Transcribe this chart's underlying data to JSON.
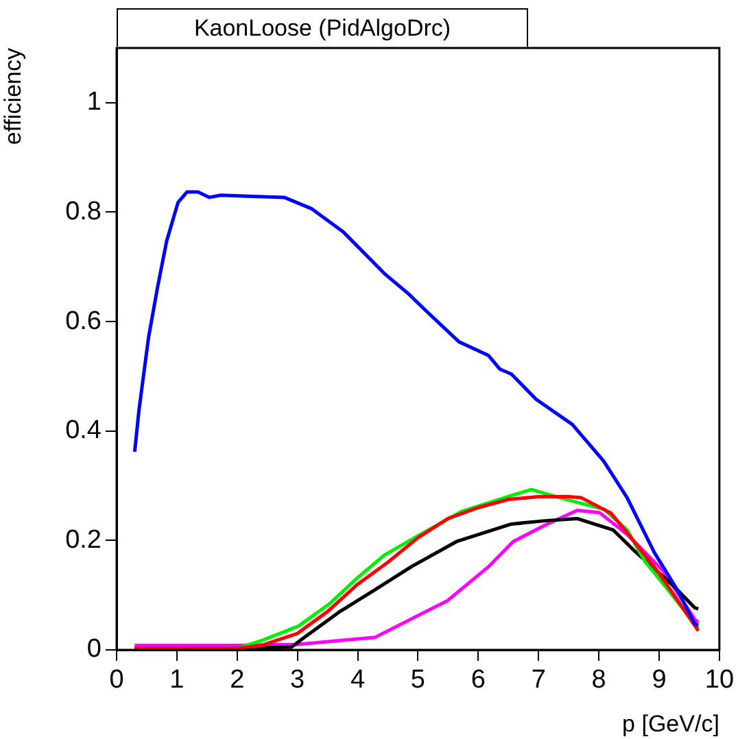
{
  "chart_data": {
    "type": "line",
    "title": "KaonLoose (PidAlgoDrc)",
    "xlabel": "p [GeV/c]",
    "ylabel": "efficiency",
    "xlim": [
      0,
      10
    ],
    "ylim": [
      0,
      1.1
    ],
    "xticks": [
      0,
      1,
      2,
      3,
      4,
      5,
      6,
      7,
      8,
      9,
      10
    ],
    "yticks": [
      0,
      0.2,
      0.4,
      0.6,
      0.8,
      1
    ],
    "grid": false,
    "legend": false,
    "marker": "none",
    "line_style": "solid",
    "series": [
      {
        "color": "#0000ff",
        "x": [
          0.3,
          0.37,
          0.53,
          0.68,
          0.83,
          1.02,
          1.17,
          1.35,
          1.54,
          1.73,
          2.18,
          2.78,
          3.24,
          3.76,
          4.44,
          4.85,
          5.12,
          5.68,
          6.17,
          6.36,
          6.55,
          6.96,
          7.56,
          8.08,
          8.47,
          8.92,
          9.3,
          9.59,
          9.65
        ],
        "values": [
          0.362,
          0.437,
          0.571,
          0.663,
          0.747,
          0.818,
          0.837,
          0.837,
          0.827,
          0.831,
          0.829,
          0.827,
          0.806,
          0.764,
          0.688,
          0.65,
          0.621,
          0.563,
          0.538,
          0.513,
          0.504,
          0.458,
          0.412,
          0.345,
          0.278,
          0.178,
          0.11,
          0.048,
          0.045
        ]
      },
      {
        "color": "#ff0000",
        "x": [
          0.3,
          1,
          2,
          2.4,
          3,
          3.5,
          4,
          4.5,
          5,
          5.5,
          6,
          6.5,
          7,
          7.5,
          7.71,
          8.2,
          8.5,
          9,
          9.65
        ],
        "values": [
          0.003,
          0.003,
          0.003,
          0.008,
          0.03,
          0.07,
          0.12,
          0.16,
          0.205,
          0.24,
          0.26,
          0.275,
          0.28,
          0.28,
          0.278,
          0.25,
          0.21,
          0.14,
          0.035
        ]
      },
      {
        "color": "#00ee00",
        "x": [
          0.3,
          1,
          2,
          2.41,
          3.01,
          3.54,
          3.99,
          4.44,
          5.04,
          5.72,
          6.55,
          6.88,
          7.49,
          8.09,
          8.47,
          8.77,
          9.14,
          9.59,
          9.65
        ],
        "values": [
          0.003,
          0.003,
          0.003,
          0.017,
          0.043,
          0.085,
          0.131,
          0.173,
          0.211,
          0.253,
          0.282,
          0.293,
          0.274,
          0.257,
          0.219,
          0.161,
          0.111,
          0.048,
          0.04
        ]
      },
      {
        "color": "#000000",
        "x": [
          0.3,
          1,
          2,
          2.9,
          3.08,
          3.69,
          4.29,
          4.89,
          5.64,
          6.55,
          7.11,
          7.64,
          8.24,
          8.62,
          9.22,
          9.59,
          9.65
        ],
        "values": [
          0.003,
          0.003,
          0.003,
          0.005,
          0.02,
          0.069,
          0.11,
          0.152,
          0.198,
          0.23,
          0.236,
          0.24,
          0.219,
          0.178,
          0.119,
          0.077,
          0.075
        ]
      },
      {
        "color": "#ff00ff",
        "x": [
          0.3,
          1,
          2,
          3,
          3.69,
          4.29,
          5.04,
          5.49,
          6.17,
          6.58,
          7.11,
          7.64,
          8.01,
          8.47,
          9.07,
          9.59,
          9.65
        ],
        "values": [
          0.008,
          0.008,
          0.008,
          0.01,
          0.017,
          0.023,
          0.065,
          0.09,
          0.152,
          0.198,
          0.228,
          0.255,
          0.251,
          0.211,
          0.144,
          0.056,
          0.05
        ]
      }
    ]
  }
}
